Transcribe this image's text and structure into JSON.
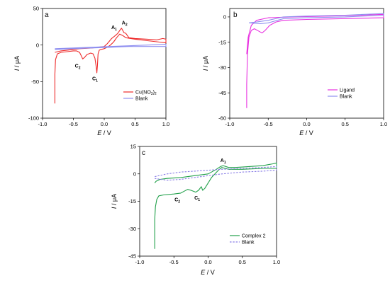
{
  "chart_data": [
    {
      "panel": "a",
      "type": "line",
      "xlabel_var": "E",
      "xlabel_unit": "V",
      "ylabel_var": "I",
      "ylabel_unit": "μA",
      "xlim": [
        -1.0,
        1.0
      ],
      "ylim": [
        -100,
        50
      ],
      "xticks": [
        -1.0,
        -0.5,
        0.0,
        0.5,
        1.0
      ],
      "yticks": [
        -100,
        -50,
        0,
        50
      ],
      "xtick_labels": [
        "-1.0",
        "-0.5",
        "0.0",
        "0.5",
        "1.0"
      ],
      "ytick_labels": [
        "-100",
        "-50",
        "0",
        "50"
      ],
      "legend_position": "bottom-right",
      "series": [
        {
          "name": "Cu(NO3)2",
          "legend_main": "Cu(NO",
          "legend_sub": "3",
          "legend_end": ")",
          "legend_sub2": "2",
          "color": "#ee2a2a",
          "dash": false,
          "points": [
            [
              -0.8,
              -80
            ],
            [
              -0.8,
              -40
            ],
            [
              -0.79,
              -20
            ],
            [
              -0.76,
              -12
            ],
            [
              -0.7,
              -10
            ],
            [
              -0.6,
              -9
            ],
            [
              -0.5,
              -8
            ],
            [
              -0.45,
              -8
            ],
            [
              -0.4,
              -10
            ],
            [
              -0.37,
              -15
            ],
            [
              -0.35,
              -19
            ],
            [
              -0.32,
              -17
            ],
            [
              -0.28,
              -13
            ],
            [
              -0.22,
              -11
            ],
            [
              -0.18,
              -12
            ],
            [
              -0.15,
              -18
            ],
            [
              -0.13,
              -30
            ],
            [
              -0.12,
              -38
            ],
            [
              -0.11,
              -28
            ],
            [
              -0.1,
              -12
            ],
            [
              -0.08,
              -7
            ],
            [
              -0.05,
              -6
            ],
            [
              0.0,
              -5
            ],
            [
              0.05,
              -3
            ],
            [
              0.1,
              0
            ],
            [
              0.15,
              4
            ],
            [
              0.2,
              10
            ],
            [
              0.25,
              15
            ],
            [
              0.3,
              13
            ],
            [
              0.35,
              10
            ],
            [
              0.5,
              8
            ],
            [
              0.7,
              6
            ],
            [
              0.9,
              4
            ],
            [
              1.0,
              3
            ],
            [
              1.0,
              8
            ],
            [
              0.95,
              9
            ],
            [
              0.9,
              8
            ],
            [
              0.85,
              7
            ],
            [
              0.7,
              8
            ],
            [
              0.5,
              9
            ],
            [
              0.4,
              10
            ],
            [
              0.35,
              16
            ],
            [
              0.32,
              17
            ],
            [
              0.3,
              20
            ],
            [
              0.28,
              23
            ],
            [
              0.26,
              21
            ],
            [
              0.22,
              16
            ],
            [
              0.18,
              13
            ],
            [
              0.12,
              9
            ],
            [
              0.08,
              5
            ],
            [
              0.05,
              2
            ],
            [
              0.0,
              -2
            ],
            [
              -0.2,
              -4
            ],
            [
              -0.4,
              -5
            ],
            [
              -0.6,
              -7
            ],
            [
              -0.7,
              -8
            ],
            [
              -0.8,
              -10
            ]
          ]
        },
        {
          "name": "Blank",
          "color": "#8f8ff0",
          "dash": false,
          "points": [
            [
              -0.8,
              -5
            ],
            [
              -0.5,
              -4
            ],
            [
              -0.2,
              -3
            ],
            [
              0.1,
              -2
            ],
            [
              0.4,
              -1
            ],
            [
              0.7,
              0
            ],
            [
              1.0,
              1
            ],
            [
              1.0,
              -2
            ],
            [
              0.7,
              -2
            ],
            [
              0.4,
              -2
            ],
            [
              0.1,
              -3
            ],
            [
              -0.2,
              -4
            ],
            [
              -0.5,
              -5
            ],
            [
              -0.8,
              -6
            ]
          ]
        }
      ],
      "annotations": [
        {
          "main": "A",
          "sub": "1",
          "x": 0.16,
          "y": 22
        },
        {
          "main": "A",
          "sub": "2",
          "x": 0.33,
          "y": 28
        },
        {
          "main": "C",
          "sub": "2",
          "x": -0.43,
          "y": -31
        },
        {
          "main": "C",
          "sub": "1",
          "x": -0.15,
          "y": -48
        }
      ]
    },
    {
      "panel": "b",
      "type": "line",
      "xlabel_var": "E",
      "xlabel_unit": "V",
      "ylabel_var": "I",
      "ylabel_unit": "μA",
      "xlim": [
        -1.0,
        1.0
      ],
      "ylim": [
        -60,
        5
      ],
      "xticks": [
        -1.0,
        -0.5,
        0.0,
        0.5,
        1.0
      ],
      "yticks": [
        -60,
        -45,
        -30,
        -15,
        0
      ],
      "xtick_labels": [
        "-1.0",
        "-0.5",
        "0.0",
        "0.5",
        "1.0"
      ],
      "ytick_labels": [
        "-60",
        "-45",
        "-30",
        "-15",
        "0"
      ],
      "legend_position": "bottom-right",
      "series": [
        {
          "name": "Ligand",
          "color": "#e832e0",
          "dash": false,
          "points": [
            [
              -0.78,
              -54
            ],
            [
              -0.78,
              -40
            ],
            [
              -0.77,
              -22
            ],
            [
              -0.75,
              -12
            ],
            [
              -0.72,
              -8
            ],
            [
              -0.68,
              -7
            ],
            [
              -0.62,
              -8.5
            ],
            [
              -0.58,
              -9.5
            ],
            [
              -0.54,
              -8
            ],
            [
              -0.48,
              -5
            ],
            [
              -0.4,
              -3
            ],
            [
              -0.3,
              -2
            ],
            [
              0.0,
              -1.5
            ],
            [
              0.5,
              -1
            ],
            [
              1.0,
              -0.5
            ],
            [
              1.0,
              1.5
            ],
            [
              0.7,
              1
            ],
            [
              0.3,
              0.5
            ],
            [
              -0.2,
              0
            ],
            [
              -0.5,
              -0.5
            ],
            [
              -0.65,
              -2
            ],
            [
              -0.72,
              -5
            ],
            [
              -0.76,
              -12
            ],
            [
              -0.78,
              -22
            ]
          ]
        },
        {
          "name": "Blank",
          "color": "#8f8ff0",
          "dash": false,
          "points": [
            [
              -0.75,
              -3.5
            ],
            [
              -0.6,
              -4
            ],
            [
              -0.5,
              -3.5
            ],
            [
              -0.3,
              -1
            ],
            [
              0.0,
              -0.5
            ],
            [
              0.5,
              0
            ],
            [
              1.0,
              1
            ],
            [
              1.0,
              2
            ],
            [
              0.5,
              1
            ],
            [
              0.0,
              0.5
            ],
            [
              -0.3,
              0
            ],
            [
              -0.5,
              -2
            ],
            [
              -0.65,
              -3
            ],
            [
              -0.75,
              -3.5
            ]
          ]
        }
      ],
      "annotations": []
    },
    {
      "panel": "c",
      "type": "line",
      "xlabel_var": "E",
      "xlabel_unit": "V",
      "ylabel_var": "I",
      "ylabel_unit": "μA",
      "xlim": [
        -1.0,
        1.0
      ],
      "ylim": [
        -45,
        15
      ],
      "xticks": [
        -1.0,
        -0.5,
        0.0,
        0.5,
        1.0
      ],
      "yticks": [
        -45,
        -30,
        -15,
        0,
        15
      ],
      "xtick_labels": [
        "-1.0",
        "-0.5",
        "0.0",
        "0.5",
        "1.0"
      ],
      "ytick_labels": [
        "-45",
        "-30",
        "-15",
        "0",
        "15"
      ],
      "legend_position": "bottom-right",
      "series": [
        {
          "name": "Complex 2",
          "color": "#21a04a",
          "dash": false,
          "points": [
            [
              -0.78,
              -41
            ],
            [
              -0.78,
              -35
            ],
            [
              -0.78,
              -25
            ],
            [
              -0.77,
              -18
            ],
            [
              -0.75,
              -14
            ],
            [
              -0.72,
              -12
            ],
            [
              -0.65,
              -11.5
            ],
            [
              -0.5,
              -11
            ],
            [
              -0.4,
              -10.5
            ],
            [
              -0.35,
              -9.5
            ],
            [
              -0.3,
              -8.5
            ],
            [
              -0.25,
              -9
            ],
            [
              -0.18,
              -10
            ],
            [
              -0.14,
              -9
            ],
            [
              -0.1,
              -7
            ],
            [
              -0.08,
              -9
            ],
            [
              -0.05,
              -8
            ],
            [
              0.0,
              -5
            ],
            [
              0.05,
              -2
            ],
            [
              0.1,
              0
            ],
            [
              0.15,
              2
            ],
            [
              0.2,
              3.5
            ],
            [
              0.25,
              3
            ],
            [
              0.3,
              2.5
            ],
            [
              0.5,
              2.5
            ],
            [
              0.8,
              3
            ],
            [
              1.0,
              3
            ],
            [
              1.0,
              6
            ],
            [
              0.95,
              5.5
            ],
            [
              0.8,
              4.5
            ],
            [
              0.6,
              4
            ],
            [
              0.4,
              3.5
            ],
            [
              0.3,
              3.5
            ],
            [
              0.22,
              4.5
            ],
            [
              0.18,
              4
            ],
            [
              0.12,
              2.5
            ],
            [
              0.05,
              1
            ],
            [
              0.0,
              0
            ],
            [
              -0.2,
              -1
            ],
            [
              -0.4,
              -2
            ],
            [
              -0.6,
              -2.5
            ],
            [
              -0.7,
              -3
            ],
            [
              -0.76,
              -4
            ],
            [
              -0.78,
              -5
            ]
          ]
        },
        {
          "name": "Blank",
          "color": "#8a7ee6",
          "dash": true,
          "points": [
            [
              -0.78,
              -1.5
            ],
            [
              -0.6,
              0
            ],
            [
              -0.4,
              1
            ],
            [
              -0.2,
              1.5
            ],
            [
              0.0,
              2
            ],
            [
              0.2,
              2.5
            ],
            [
              0.5,
              3
            ],
            [
              0.8,
              3.5
            ],
            [
              1.0,
              4
            ],
            [
              1.0,
              2
            ],
            [
              0.8,
              1.5
            ],
            [
              0.5,
              1
            ],
            [
              0.2,
              0
            ],
            [
              0.0,
              -1
            ],
            [
              -0.2,
              -2
            ],
            [
              -0.4,
              -3
            ],
            [
              -0.6,
              -3.5
            ],
            [
              -0.78,
              -2.5
            ]
          ]
        }
      ],
      "annotations": [
        {
          "main": "A",
          "sub": "1",
          "x": 0.22,
          "y": 6.5
        },
        {
          "main": "C",
          "sub": "2",
          "x": -0.45,
          "y": -15
        },
        {
          "main": "C",
          "sub": "1",
          "x": -0.16,
          "y": -14
        }
      ]
    }
  ]
}
